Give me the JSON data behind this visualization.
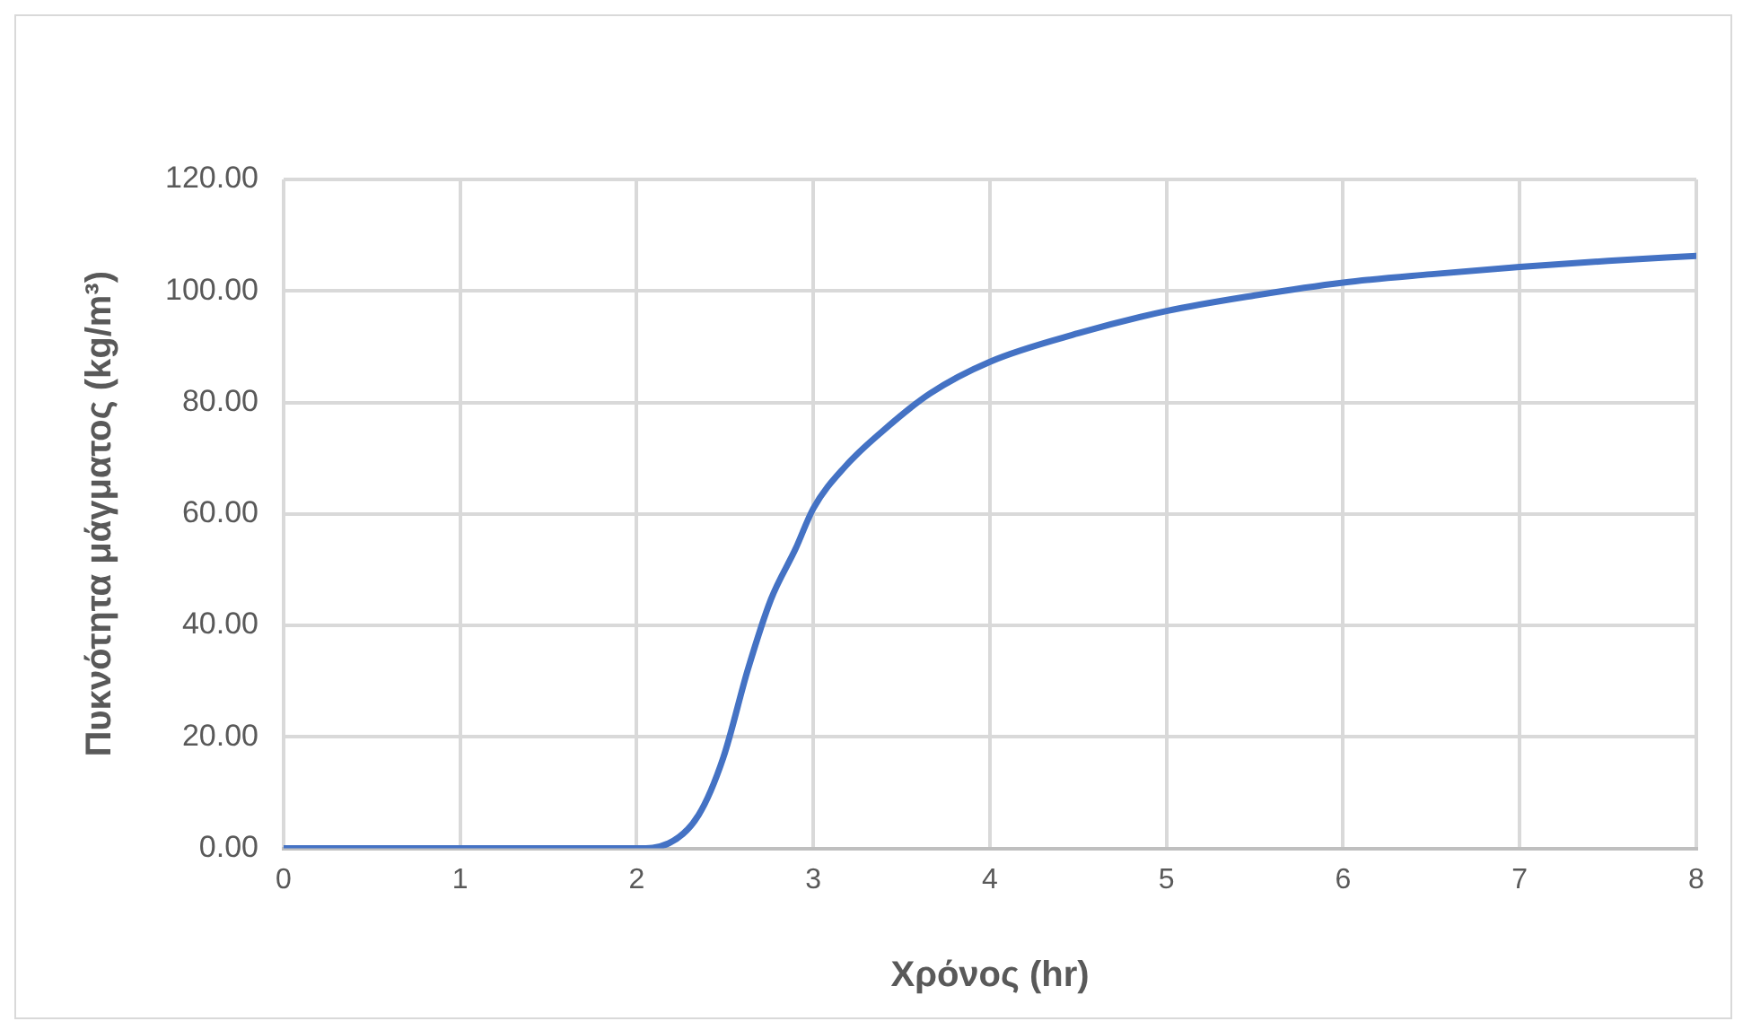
{
  "chart_data": {
    "type": "line",
    "xlabel": "Χρόνος (hr)",
    "ylabel": "Πυκνότητα μάγματος (kg/m³)",
    "series": [
      {
        "color": "#4472c4",
        "x": [
          0,
          1,
          2,
          2.18,
          2.35,
          2.49,
          2.63,
          2.76,
          2.9,
          3,
          3.18,
          3.39,
          3.66,
          4,
          4.5,
          5,
          5.5,
          6,
          6.5,
          7,
          7.5,
          8
        ],
        "values": [
          0,
          0,
          0,
          0.9,
          6,
          16.3,
          32.2,
          44.7,
          53.8,
          61,
          68.5,
          74.8,
          81.6,
          87.3,
          92.4,
          96.4,
          99.2,
          101.5,
          103,
          104.3,
          105.4,
          106.3
        ]
      }
    ],
    "xlim": [
      0,
      8
    ],
    "xticks": [
      0,
      1,
      2,
      3,
      4,
      5,
      6,
      7,
      8
    ],
    "ylim": [
      0,
      120
    ],
    "yticks": [
      {
        "value": 0,
        "label": "0.00"
      },
      {
        "value": 20,
        "label": "20.00"
      },
      {
        "value": 40,
        "label": "40.00"
      },
      {
        "value": 60,
        "label": "60.00"
      },
      {
        "value": 80,
        "label": "80.00"
      },
      {
        "value": 100,
        "label": "100.00"
      },
      {
        "value": 120,
        "label": "120.00"
      }
    ],
    "grid": true,
    "legend": false,
    "marker": "none",
    "line_style": "solid"
  }
}
